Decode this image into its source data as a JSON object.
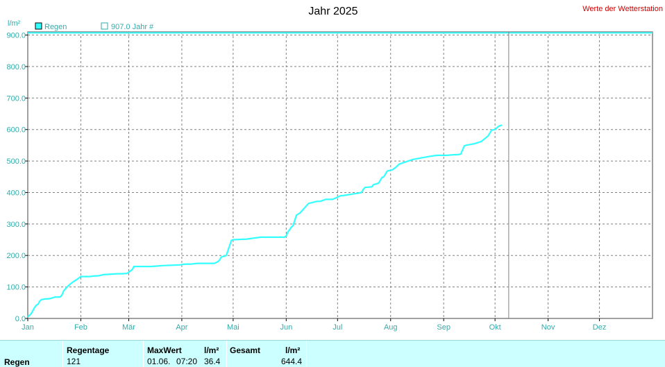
{
  "header": {
    "title": "Jahr 2025",
    "station_label": "Werte der Wetterstation",
    "station_color": "#cc0000"
  },
  "legend": {
    "unit": "l/m²",
    "series_label": "Regen",
    "reference_label": "907.0 Jahr #"
  },
  "colors": {
    "series": "#33ffff",
    "reference": "#33ffff",
    "axis_text": "#33aaaa",
    "footer_bg": "#ccffff"
  },
  "chart_data": {
    "type": "line",
    "title": "Jahr 2025",
    "ylabel": "l/m²",
    "ylim": [
      0,
      910
    ],
    "yticks": [
      "0.0",
      "100.0",
      "200.0",
      "300.0",
      "400.0",
      "500.0",
      "600.0",
      "700.0",
      "800.0",
      "900.0"
    ],
    "months": [
      "Jan",
      "Feb",
      "Mär",
      "Apr",
      "Mai",
      "Jun",
      "Jul",
      "Aug",
      "Sep",
      "Okt",
      "Nov",
      "Dez"
    ],
    "grid": true,
    "today_marker_day": 282,
    "reference_line": {
      "name": "907.0 Jahr #",
      "value": 907.0
    },
    "series": [
      {
        "name": "Regen",
        "x": [
          1,
          2,
          3,
          4,
          5,
          6,
          7,
          8,
          9,
          11,
          12,
          14,
          17,
          20,
          21,
          22,
          24,
          26,
          28,
          30,
          32,
          37,
          40,
          42,
          45,
          51,
          53,
          56,
          59,
          62,
          63,
          73,
          80,
          90,
          92,
          97,
          100,
          110,
          112,
          113,
          114,
          116,
          117,
          120,
          121,
          129,
          137,
          146,
          150,
          151,
          152,
          153,
          154,
          155,
          156,
          158,
          160,
          165,
          170,
          172,
          175,
          179,
          182,
          183,
          184,
          185,
          194,
          196,
          197,
          198,
          202,
          203,
          205,
          206,
          208,
          209,
          211,
          214,
          216,
          218,
          226,
          236,
          240,
          242,
          244,
          246,
          250,
          252,
          254,
          256,
          257,
          262,
          266,
          270,
          272,
          274,
          275,
          276,
          277,
          278
        ],
        "values": [
          5,
          10,
          15,
          25,
          35,
          42,
          45,
          55,
          60,
          62,
          62,
          63,
          68,
          68,
          75,
          88,
          100,
          110,
          118,
          125,
          133,
          133,
          135,
          135,
          139,
          141,
          142,
          142,
          143,
          155,
          165,
          165,
          168,
          170,
          172,
          173,
          175,
          175,
          180,
          185,
          195,
          198,
          200,
          248,
          250,
          252,
          258,
          258,
          258,
          258,
          262,
          275,
          282,
          290,
          295,
          328,
          335,
          365,
          372,
          372,
          378,
          378,
          385,
          388,
          390,
          390,
          398,
          400,
          410,
          416,
          418,
          425,
          428,
          430,
          448,
          450,
          468,
          472,
          480,
          490,
          505,
          515,
          518,
          518,
          518,
          518,
          520,
          520,
          522,
          548,
          550,
          555,
          562,
          580,
          598,
          600,
          605,
          610,
          612,
          614
        ]
      }
    ]
  },
  "footer": {
    "row_label": "Regen",
    "rain_days_header": "Regentage",
    "rain_days_value": "121",
    "max_header": "MaxWert",
    "max_unit": "l/m²",
    "max_date": "01.06.",
    "max_time": "07:20",
    "max_value": "36.4",
    "total_header": "Gesamt",
    "total_unit": "l/m²",
    "total_value": "644.4"
  }
}
